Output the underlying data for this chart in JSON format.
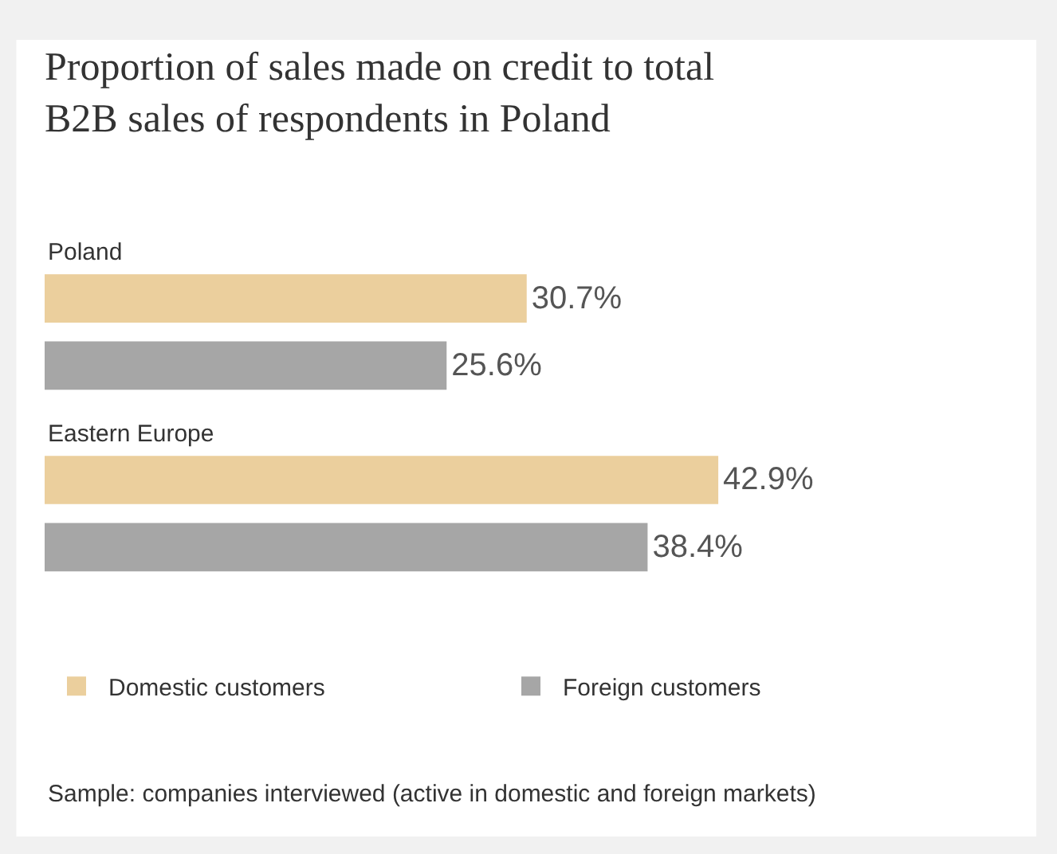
{
  "chart_data": {
    "type": "bar",
    "orientation": "horizontal",
    "title": "Proportion of sales made on credit to total\nB2B sales of respondents in Poland",
    "categories": [
      "Poland",
      "Eastern Europe"
    ],
    "series": [
      {
        "name": "Domestic customers",
        "color": "#ebcf9d",
        "values": [
          30.7,
          42.9
        ],
        "value_labels": [
          "30.7%",
          "42.9%"
        ]
      },
      {
        "name": "Foreign customers",
        "color": "#a6a6a6",
        "values": [
          25.6,
          38.4
        ],
        "value_labels": [
          "25.6%",
          "38.4%"
        ]
      }
    ],
    "legend": "bottom",
    "annotations": [
      "Sample: companies interviewed (active in domestic and foreign markets)"
    ]
  }
}
